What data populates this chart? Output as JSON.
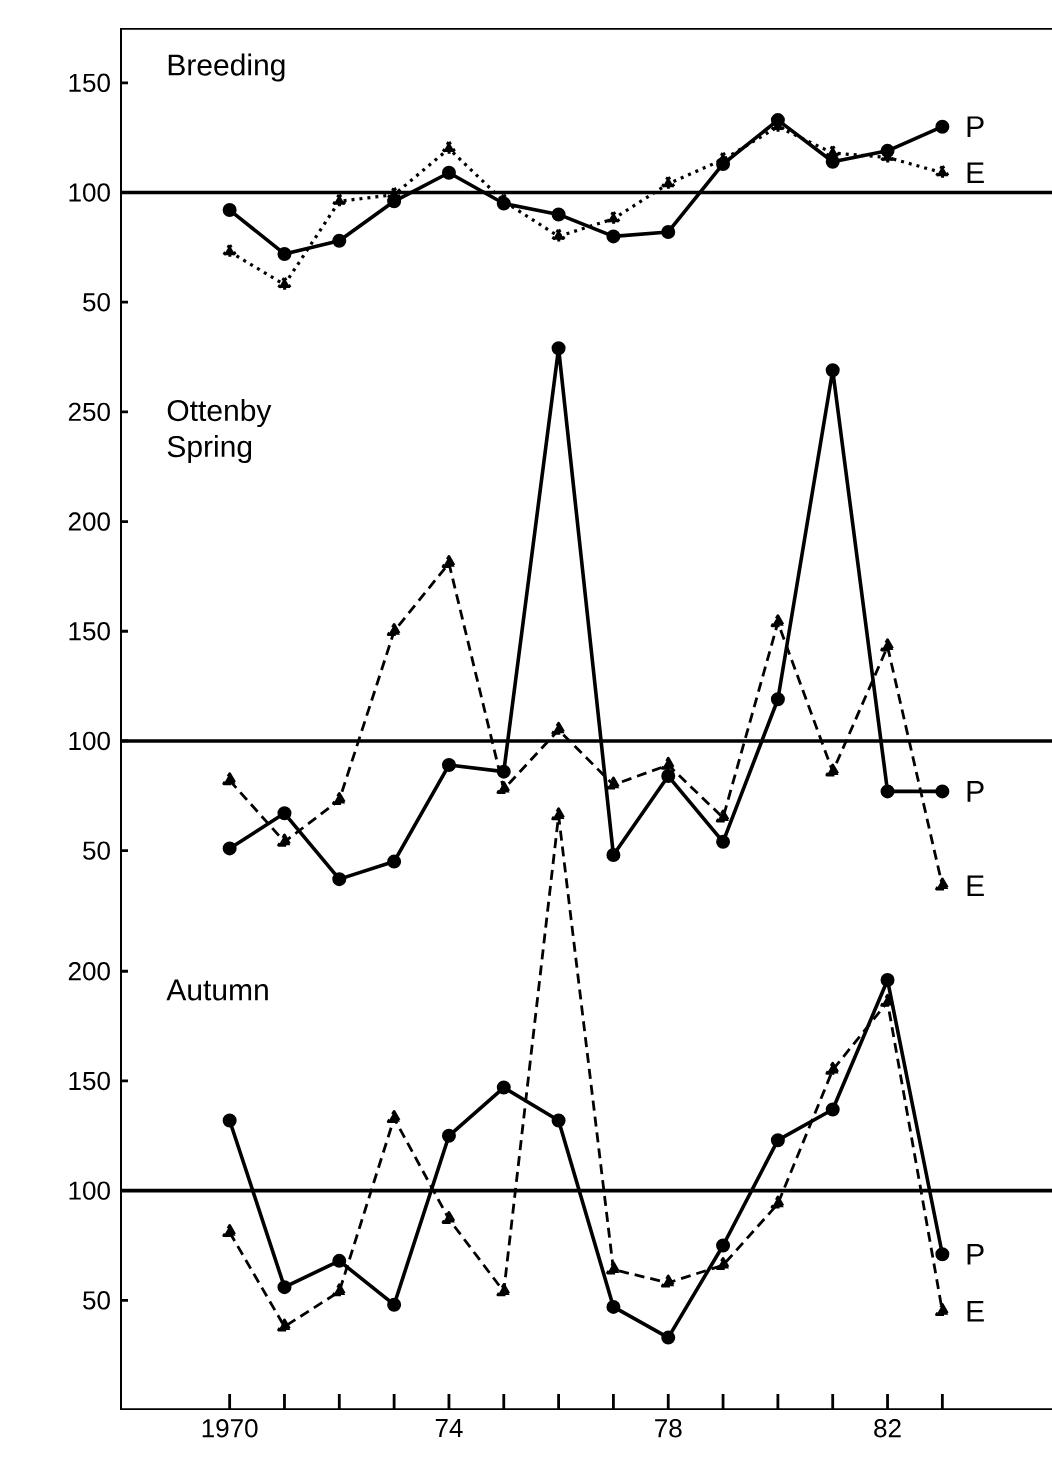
{
  "chart_data": [
    {
      "type": "line",
      "title": "Breeding",
      "x": [
        1970,
        1971,
        1972,
        1973,
        1974,
        1975,
        1976,
        1977,
        1978,
        1979,
        1980,
        1981,
        1982,
        1983
      ],
      "xlim": [
        1968,
        1985
      ],
      "ylim": [
        -455,
        175
      ],
      "yticks": [
        50,
        100,
        150
      ],
      "tick_labels": "y",
      "ref_lines": [
        {
          "axis": "y",
          "value": 100
        }
      ],
      "series": [
        {
          "name": "P",
          "color": "#000000",
          "marker": "circle",
          "line_style": "solid",
          "values": [
            92,
            72,
            78,
            96,
            109,
            95,
            90,
            80,
            82,
            113,
            133,
            114,
            119,
            130
          ]
        },
        {
          "name": "E",
          "color": "#000000",
          "marker": "triangle",
          "line_style": "dotted",
          "values": [
            73,
            58,
            96,
            99,
            120,
            96,
            80,
            88,
            104,
            115,
            130,
            118,
            116,
            109
          ]
        }
      ]
    },
    {
      "type": "line",
      "title": "Ottenby Spring",
      "x": [
        1970,
        1971,
        1972,
        1973,
        1974,
        1975,
        1976,
        1977,
        1978,
        1979,
        1980,
        1981,
        1982,
        1983
      ],
      "xlim": [
        1968,
        1985
      ],
      "ylim": [
        -205,
        425
      ],
      "yticks": [
        50,
        100,
        150,
        200,
        250
      ],
      "tick_labels": "y",
      "ref_lines": [
        {
          "axis": "y",
          "value": 100
        }
      ],
      "series": [
        {
          "name": "P",
          "color": "#000000",
          "marker": "circle",
          "line_style": "solid",
          "values": [
            51,
            67,
            37,
            45,
            89,
            86,
            279,
            48,
            84,
            54,
            119,
            269,
            77,
            77
          ]
        },
        {
          "name": "E",
          "color": "#000000",
          "marker": "triangle",
          "line_style": "dashed",
          "values": [
            82,
            54,
            73,
            150,
            181,
            78,
            105,
            80,
            89,
            65,
            154,
            86,
            143,
            34
          ]
        }
      ]
    },
    {
      "type": "line",
      "title": "Autumn",
      "x": [
        1970,
        1971,
        1972,
        1973,
        1974,
        1975,
        1976,
        1977,
        1978,
        1979,
        1980,
        1981,
        1982,
        1983
      ],
      "xlim": [
        1968,
        1985
      ],
      "ylim": [
        0,
        630
      ],
      "yticks": [
        50,
        100,
        150,
        200
      ],
      "xticks": [
        1970,
        {
          "value": 1971,
          "label": null
        },
        {
          "value": 1972,
          "label": null
        },
        {
          "value": 1973,
          "label": null
        },
        {
          "value": 1974,
          "label": "74"
        },
        {
          "value": 1975,
          "label": null
        },
        {
          "value": 1976,
          "label": null
        },
        {
          "value": 1977,
          "label": null
        },
        {
          "value": 1978,
          "label": "78"
        },
        {
          "value": 1979,
          "label": null
        },
        {
          "value": 1980,
          "label": null
        },
        {
          "value": 1981,
          "label": null
        },
        {
          "value": 1982,
          "label": "82"
        },
        {
          "value": 1983,
          "label": null
        }
      ],
      "ref_lines": [
        {
          "axis": "y",
          "value": 100
        }
      ],
      "series": [
        {
          "name": "P",
          "color": "#000000",
          "marker": "circle",
          "line_style": "solid",
          "values": [
            132,
            56,
            68,
            48,
            125,
            147,
            132,
            47,
            33,
            75,
            123,
            137,
            196,
            71
          ]
        },
        {
          "name": "E",
          "color": "#000000",
          "marker": "triangle",
          "line_style": "dashed",
          "values": [
            81,
            38,
            54,
            133,
            87,
            54,
            271,
            64,
            58,
            66,
            94,
            155,
            186,
            45
          ]
        }
      ]
    }
  ]
}
